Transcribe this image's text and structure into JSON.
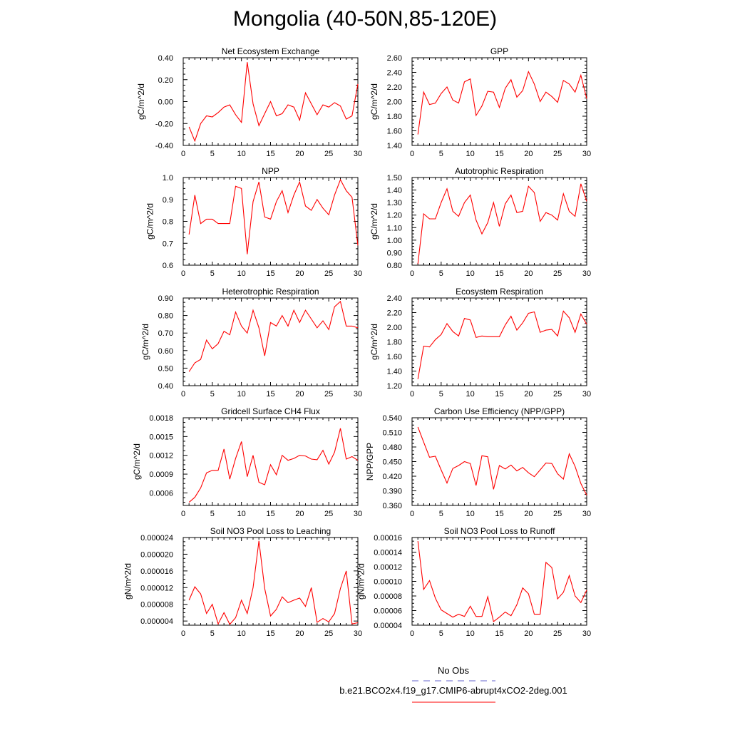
{
  "title": "Mongolia (40-50N,85-120E)",
  "colors": {
    "model": "#ff0000",
    "obs": "#6666cc",
    "axis": "#000000"
  },
  "legend": {
    "obs_label": "No Obs",
    "model_label": "b.e21.BCO2x4.f19_g17.CMIP6-abrupt4xCO2-2deg.001"
  },
  "chart_data": [
    {
      "type": "line",
      "title": "Net Ecosystem Exchange",
      "ylabel": "gC/m^2/d",
      "xlabel": "",
      "xlim": [
        0,
        30
      ],
      "ylim": [
        -0.4,
        0.4
      ],
      "xticks": [
        "0",
        "5",
        "10",
        "15",
        "20",
        "25",
        "30"
      ],
      "yticks": [
        "-0.40",
        "-0.20",
        "0.00",
        "0.20",
        "0.40"
      ],
      "x": [
        1,
        2,
        3,
        4,
        5,
        6,
        7,
        8,
        9,
        10,
        11,
        12,
        13,
        14,
        15,
        16,
        17,
        18,
        19,
        20,
        21,
        22,
        23,
        24,
        25,
        26,
        27,
        28,
        29,
        30
      ],
      "series": [
        {
          "name": "b.e21.BCO2x4.f19_g17.CMIP6-abrupt4xCO2-2deg.001",
          "values": [
            -0.23,
            -0.36,
            -0.2,
            -0.13,
            -0.14,
            -0.1,
            -0.05,
            -0.03,
            -0.12,
            -0.19,
            0.36,
            -0.02,
            -0.22,
            -0.11,
            0.0,
            -0.13,
            -0.11,
            -0.03,
            -0.05,
            -0.17,
            0.08,
            -0.02,
            -0.12,
            -0.03,
            -0.05,
            -0.01,
            -0.04,
            -0.16,
            -0.13,
            0.16
          ]
        }
      ]
    },
    {
      "type": "line",
      "title": "GPP",
      "ylabel": "gC/m^2/d",
      "xlabel": "",
      "xlim": [
        0,
        30
      ],
      "ylim": [
        1.4,
        2.6
      ],
      "xticks": [
        "0",
        "5",
        "10",
        "15",
        "20",
        "25",
        "30"
      ],
      "yticks": [
        "1.40",
        "1.60",
        "1.80",
        "2.00",
        "2.20",
        "2.40",
        "2.60"
      ],
      "x": [
        1,
        2,
        3,
        4,
        5,
        6,
        7,
        8,
        9,
        10,
        11,
        12,
        13,
        14,
        15,
        16,
        17,
        18,
        19,
        20,
        21,
        22,
        23,
        24,
        25,
        26,
        27,
        28,
        29,
        30
      ],
      "series": [
        {
          "name": "b.e21.BCO2x4.f19_g17.CMIP6-abrupt4xCO2-2deg.001",
          "values": [
            1.55,
            2.13,
            1.96,
            1.98,
            2.11,
            2.2,
            2.02,
            1.98,
            2.27,
            2.31,
            1.81,
            1.94,
            2.14,
            2.13,
            1.92,
            2.18,
            2.3,
            2.06,
            2.15,
            2.41,
            2.24,
            2.0,
            2.13,
            2.07,
            1.99,
            2.29,
            2.24,
            2.13,
            2.36,
            2.04
          ]
        }
      ]
    },
    {
      "type": "line",
      "title": "NPP",
      "ylabel": "gC/m^2/d",
      "xlabel": "",
      "xlim": [
        0,
        30
      ],
      "ylim": [
        0.6,
        1.0
      ],
      "xticks": [
        "0",
        "5",
        "10",
        "15",
        "20",
        "25",
        "30"
      ],
      "yticks": [
        "0.6",
        "0.7",
        "0.8",
        "0.9",
        "1.0"
      ],
      "x": [
        1,
        2,
        3,
        4,
        5,
        6,
        7,
        8,
        9,
        10,
        11,
        12,
        13,
        14,
        15,
        16,
        17,
        18,
        19,
        20,
        21,
        22,
        23,
        24,
        25,
        26,
        27,
        28,
        29,
        30
      ],
      "series": [
        {
          "name": "b.e21.BCO2x4.f19_g17.CMIP6-abrupt4xCO2-2deg.001",
          "values": [
            0.74,
            0.92,
            0.79,
            0.81,
            0.81,
            0.79,
            0.79,
            0.79,
            0.96,
            0.95,
            0.65,
            0.89,
            0.98,
            0.82,
            0.81,
            0.89,
            0.94,
            0.84,
            0.92,
            0.98,
            0.87,
            0.85,
            0.9,
            0.86,
            0.83,
            0.92,
            0.99,
            0.94,
            0.91,
            0.69
          ]
        }
      ]
    },
    {
      "type": "line",
      "title": "Autotrophic Respiration",
      "ylabel": "gC/m^2/d",
      "xlabel": "",
      "xlim": [
        0,
        30
      ],
      "ylim": [
        0.8,
        1.5
      ],
      "xticks": [
        "0",
        "5",
        "10",
        "15",
        "20",
        "25",
        "30"
      ],
      "yticks": [
        "0.80",
        "0.90",
        "1.00",
        "1.10",
        "1.20",
        "1.30",
        "1.40",
        "1.50"
      ],
      "x": [
        1,
        2,
        3,
        4,
        5,
        6,
        7,
        8,
        9,
        10,
        11,
        12,
        13,
        14,
        15,
        16,
        17,
        18,
        19,
        20,
        21,
        22,
        23,
        24,
        25,
        26,
        27,
        28,
        29,
        30
      ],
      "series": [
        {
          "name": "b.e21.BCO2x4.f19_g17.CMIP6-abrupt4xCO2-2deg.001",
          "values": [
            0.81,
            1.21,
            1.17,
            1.17,
            1.3,
            1.41,
            1.23,
            1.19,
            1.3,
            1.36,
            1.16,
            1.05,
            1.14,
            1.3,
            1.11,
            1.29,
            1.36,
            1.22,
            1.23,
            1.43,
            1.38,
            1.15,
            1.22,
            1.2,
            1.16,
            1.37,
            1.23,
            1.19,
            1.45,
            1.31
          ]
        }
      ]
    },
    {
      "type": "line",
      "title": "Heterotrophic Respiration",
      "ylabel": "gC/m^2/d",
      "xlabel": "",
      "xlim": [
        0,
        30
      ],
      "ylim": [
        0.4,
        0.9
      ],
      "xticks": [
        "0",
        "5",
        "10",
        "15",
        "20",
        "25",
        "30"
      ],
      "yticks": [
        "0.40",
        "0.50",
        "0.60",
        "0.70",
        "0.80",
        "0.90"
      ],
      "x": [
        1,
        2,
        3,
        4,
        5,
        6,
        7,
        8,
        9,
        10,
        11,
        12,
        13,
        14,
        15,
        16,
        17,
        18,
        19,
        20,
        21,
        22,
        23,
        24,
        25,
        26,
        27,
        28,
        29,
        30
      ],
      "series": [
        {
          "name": "b.e21.BCO2x4.f19_g17.CMIP6-abrupt4xCO2-2deg.001",
          "values": [
            0.48,
            0.53,
            0.55,
            0.66,
            0.61,
            0.64,
            0.71,
            0.69,
            0.82,
            0.74,
            0.7,
            0.83,
            0.73,
            0.57,
            0.76,
            0.74,
            0.8,
            0.74,
            0.83,
            0.76,
            0.83,
            0.78,
            0.73,
            0.77,
            0.72,
            0.85,
            0.88,
            0.74,
            0.74,
            0.73
          ]
        }
      ]
    },
    {
      "type": "line",
      "title": "Ecosystem Respiration",
      "ylabel": "gC/m^2/d",
      "xlabel": "",
      "xlim": [
        0,
        30
      ],
      "ylim": [
        1.2,
        2.4
      ],
      "xticks": [
        "0",
        "5",
        "10",
        "15",
        "20",
        "25",
        "30"
      ],
      "yticks": [
        "1.20",
        "1.40",
        "1.60",
        "1.80",
        "2.00",
        "2.20",
        "2.40"
      ],
      "x": [
        1,
        2,
        3,
        4,
        5,
        6,
        7,
        8,
        9,
        10,
        11,
        12,
        13,
        14,
        15,
        16,
        17,
        18,
        19,
        20,
        21,
        22,
        23,
        24,
        25,
        26,
        27,
        28,
        29,
        30
      ],
      "series": [
        {
          "name": "b.e21.BCO2x4.f19_g17.CMIP6-abrupt4xCO2-2deg.001",
          "values": [
            1.29,
            1.74,
            1.73,
            1.83,
            1.9,
            2.05,
            1.94,
            1.88,
            2.12,
            2.1,
            1.86,
            1.88,
            1.87,
            1.87,
            1.87,
            2.03,
            2.15,
            1.96,
            2.06,
            2.19,
            2.21,
            1.93,
            1.96,
            1.97,
            1.88,
            2.22,
            2.13,
            1.93,
            2.18,
            2.04
          ]
        }
      ]
    },
    {
      "type": "line",
      "title": "Gridcell Surface CH4 Flux",
      "ylabel": "gC/m^2/d",
      "xlabel": "",
      "xlim": [
        0,
        30
      ],
      "ylim": [
        0.0004,
        0.0018
      ],
      "xticks": [
        "0",
        "5",
        "10",
        "15",
        "20",
        "25",
        "30"
      ],
      "yticks": [
        "0.0006",
        "0.0009",
        "0.0012",
        "0.0015",
        "0.0018"
      ],
      "ytick_values": [
        0.0006,
        0.0009,
        0.0012,
        0.0015,
        0.0018
      ],
      "x": [
        1,
        2,
        3,
        4,
        5,
        6,
        7,
        8,
        9,
        10,
        11,
        12,
        13,
        14,
        15,
        16,
        17,
        18,
        19,
        20,
        21,
        22,
        23,
        24,
        25,
        26,
        27,
        28,
        29,
        30
      ],
      "series": [
        {
          "name": "b.e21.BCO2x4.f19_g17.CMIP6-abrupt4xCO2-2deg.001",
          "values": [
            0.00045,
            0.00053,
            0.00068,
            0.00092,
            0.00096,
            0.00096,
            0.0013,
            0.00082,
            0.00115,
            0.00142,
            0.00086,
            0.0012,
            0.00077,
            0.00073,
            0.00105,
            0.00089,
            0.0012,
            0.00112,
            0.00115,
            0.0012,
            0.00119,
            0.00114,
            0.00113,
            0.00128,
            0.00106,
            0.00125,
            0.00163,
            0.00114,
            0.00118,
            0.00112
          ]
        }
      ]
    },
    {
      "type": "line",
      "title": "Carbon Use Efficiency (NPP/GPP)",
      "ylabel": "NPP/GPP",
      "xlabel": "",
      "xlim": [
        0,
        30
      ],
      "ylim": [
        0.36,
        0.54
      ],
      "xticks": [
        "0",
        "5",
        "10",
        "15",
        "20",
        "25",
        "30"
      ],
      "yticks": [
        "0.360",
        "0.390",
        "0.420",
        "0.450",
        "0.480",
        "0.510",
        "0.540"
      ],
      "x": [
        1,
        2,
        3,
        4,
        5,
        6,
        7,
        8,
        9,
        10,
        11,
        12,
        13,
        14,
        15,
        16,
        17,
        18,
        19,
        20,
        21,
        22,
        23,
        24,
        25,
        26,
        27,
        28,
        29,
        30
      ],
      "series": [
        {
          "name": "b.e21.BCO2x4.f19_g17.CMIP6-abrupt4xCO2-2deg.001",
          "values": [
            0.521,
            0.49,
            0.459,
            0.461,
            0.433,
            0.406,
            0.436,
            0.442,
            0.45,
            0.446,
            0.401,
            0.462,
            0.46,
            0.393,
            0.442,
            0.435,
            0.443,
            0.431,
            0.438,
            0.427,
            0.419,
            0.433,
            0.447,
            0.446,
            0.425,
            0.414,
            0.466,
            0.44,
            0.405,
            0.381
          ]
        }
      ]
    },
    {
      "type": "line",
      "title": "Soil NO3 Pool Loss to Leaching",
      "ylabel": "gN/m^2/d",
      "xlabel": "",
      "xlim": [
        0,
        30
      ],
      "ylim": [
        3e-06,
        2.4e-05
      ],
      "xticks": [
        "0",
        "5",
        "10",
        "15",
        "20",
        "25",
        "30"
      ],
      "yticks": [
        "0.000004",
        "0.000008",
        "0.000012",
        "0.000016",
        "0.000020",
        "0.000024"
      ],
      "ytick_values": [
        4e-06,
        8e-06,
        1.2e-05,
        1.6e-05,
        2e-05,
        2.4e-05
      ],
      "x": [
        1,
        2,
        3,
        4,
        5,
        6,
        7,
        8,
        9,
        10,
        11,
        12,
        13,
        14,
        15,
        16,
        17,
        18,
        19,
        20,
        21,
        22,
        23,
        24,
        25,
        26,
        27,
        28,
        29,
        30
      ],
      "series": [
        {
          "name": "b.e21.BCO2x4.f19_g17.CMIP6-abrupt4xCO2-2deg.001",
          "values": [
            9e-06,
            1.22e-05,
            1.05e-05,
            5.8e-06,
            8e-06,
            3.3e-06,
            6e-06,
            3.2e-06,
            4.8e-06,
            9e-06,
            5.8e-06,
            1.2e-05,
            2.32e-05,
            1.18e-05,
            5.2e-06,
            6.8e-06,
            9.8e-06,
            8.4e-06,
            9e-06,
            9.5e-06,
            7.5e-06,
            1.2e-05,
            3.7e-06,
            4.6e-06,
            3.8e-06,
            5.8e-06,
            1.18e-05,
            1.6e-05,
            3.3e-06,
            3.6e-06
          ]
        }
      ]
    },
    {
      "type": "line",
      "title": "Soil NO3 Pool Loss to Runoff",
      "ylabel": "gN/m^2/d",
      "xlabel": "",
      "xlim": [
        0,
        30
      ],
      "ylim": [
        4e-05,
        0.00016
      ],
      "xticks": [
        "0",
        "5",
        "10",
        "15",
        "20",
        "25",
        "30"
      ],
      "yticks": [
        "0.00004",
        "0.00006",
        "0.00008",
        "0.00010",
        "0.00012",
        "0.00014",
        "0.00016"
      ],
      "ytick_values": [
        4e-05,
        6e-05,
        8e-05,
        0.0001,
        0.00012,
        0.00014,
        0.00016
      ],
      "x": [
        1,
        2,
        3,
        4,
        5,
        6,
        7,
        8,
        9,
        10,
        11,
        12,
        13,
        14,
        15,
        16,
        17,
        18,
        19,
        20,
        21,
        22,
        23,
        24,
        25,
        26,
        27,
        28,
        29,
        30
      ],
      "series": [
        {
          "name": "b.e21.BCO2x4.f19_g17.CMIP6-abrupt4xCO2-2deg.001",
          "values": [
            0.000155,
            8.9e-05,
            0.000101,
            7.7e-05,
            6.1e-05,
            5.6e-05,
            5.1e-05,
            5.5e-05,
            5.2e-05,
            6.6e-05,
            5.2e-05,
            5.2e-05,
            7.9e-05,
            4.5e-05,
            5.1e-05,
            5.8e-05,
            5.3e-05,
            6.8e-05,
            9.1e-05,
            8.3e-05,
            5.5e-05,
            5.5e-05,
            0.000126,
            0.000119,
            7.6e-05,
            8.5e-05,
            0.000108,
            8e-05,
            7.1e-05,
            8.8e-05
          ]
        }
      ]
    }
  ]
}
